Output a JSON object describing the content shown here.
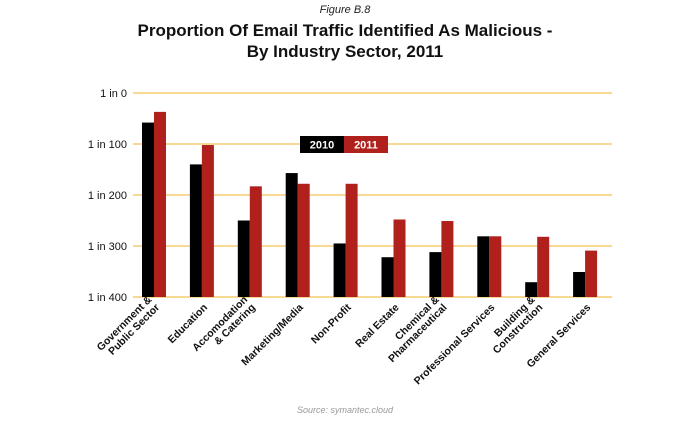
{
  "figure_label": "Figure B.8",
  "title_line1": "Proportion Of Email Traffic Identified As Malicious -",
  "title_line2": "By Industry Sector, 2011",
  "source": "Source: symantec.cloud",
  "colors": {
    "series_2010": "#000000",
    "series_2011": "#b0201c",
    "gridline": "#f2b32a"
  },
  "chart_data": {
    "type": "bar",
    "title": "Proportion Of Email Traffic Identified As Malicious - By Industry Sector, 2011",
    "xlabel": "",
    "ylabel": "",
    "ylim": [
      0,
      400
    ],
    "y_axis_inverted": true,
    "y_ticks": [
      {
        "value": 0,
        "label": "1 in 0"
      },
      {
        "value": 100,
        "label": "1 in 100"
      },
      {
        "value": 200,
        "label": "1 in 200"
      },
      {
        "value": 300,
        "label": "1 in 300"
      },
      {
        "value": 400,
        "label": "1 in 400"
      }
    ],
    "legend_position": "center",
    "categories": [
      [
        "Government &",
        "Public Sector"
      ],
      [
        "Education"
      ],
      [
        "Accomodation",
        "& Catering"
      ],
      [
        "Marketing/Media"
      ],
      [
        "Non-Profit"
      ],
      [
        "Real Estate"
      ],
      [
        "Chemical &",
        "Pharmaceutical"
      ],
      [
        "Professional Services"
      ],
      [
        "Building &",
        "Construction"
      ],
      [
        "General Services"
      ]
    ],
    "series": [
      {
        "name": "2010",
        "values": [
          58,
          140,
          250,
          157,
          295,
          322,
          312,
          281,
          371,
          351
        ]
      },
      {
        "name": "2011",
        "values": [
          37,
          102,
          183,
          178,
          178,
          248,
          251,
          281,
          282,
          309
        ]
      }
    ]
  }
}
